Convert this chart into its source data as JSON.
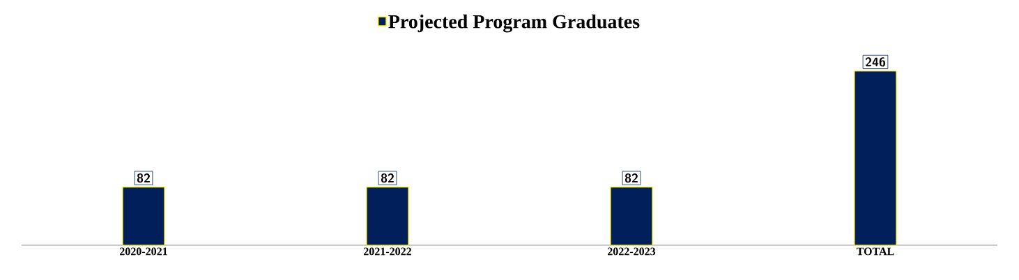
{
  "chart_data": {
    "type": "bar",
    "categories": [
      "2020-2021",
      "2021-2022",
      "2022-2023",
      "TOTAL"
    ],
    "series": [
      {
        "name": "Projected Program Graduates",
        "color": "#001f5b",
        "values": [
          82,
          82,
          82,
          246
        ]
      }
    ],
    "data_labels": true,
    "legend": "top"
  }
}
